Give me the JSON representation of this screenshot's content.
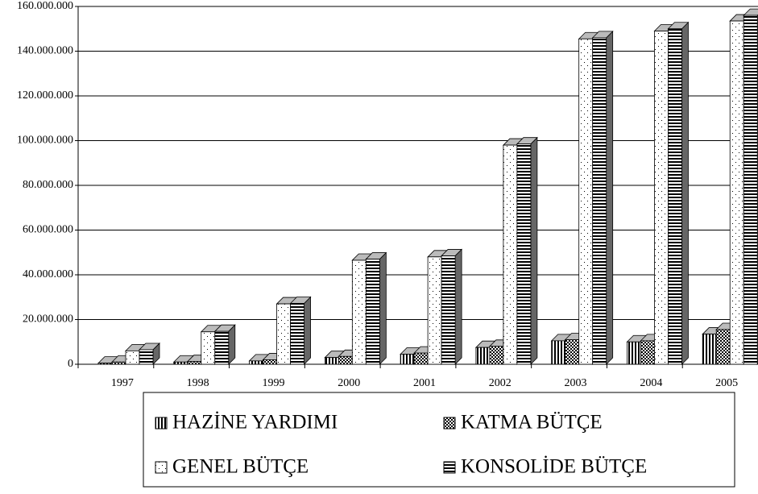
{
  "chart_data": {
    "type": "bar3d",
    "categories": [
      "1997",
      "1998",
      "1999",
      "2000",
      "2001",
      "2002",
      "2003",
      "2004",
      "2005"
    ],
    "series": [
      {
        "name": "HAZİNE YARDIMI",
        "values": [
          500000,
          1000000,
          1500000,
          3000000,
          4500000,
          7500000,
          10500000,
          10000000,
          13500000
        ]
      },
      {
        "name": "KATMA BÜTÇE",
        "values": [
          1000000,
          1200000,
          2000000,
          3500000,
          5000000,
          8000000,
          11000000,
          10500000,
          15500000
        ]
      },
      {
        "name": "GENEL BÜTÇE",
        "values": [
          6000000,
          14500000,
          27000000,
          46500000,
          48000000,
          98000000,
          145500000,
          149000000,
          153500000
        ]
      },
      {
        "name": "KONSOLİDE BÜTÇE",
        "values": [
          6500000,
          14700000,
          27200000,
          47000000,
          48500000,
          98500000,
          146000000,
          150000000,
          156000000
        ]
      }
    ],
    "ylim": [
      0,
      160000000
    ],
    "yticks": [
      0,
      {
        "value": 20000000,
        "label": "20.000.000"
      },
      {
        "value": 40000000,
        "label": "40.000.000"
      },
      {
        "value": 60000000,
        "label": "60.000.000"
      },
      {
        "value": 80000000,
        "label": "80.000.000"
      },
      {
        "value": 100000000,
        "label": "100.000.000"
      },
      {
        "value": 120000000,
        "label": "120.000.000"
      },
      {
        "value": 140000000,
        "label": "140.000.000"
      },
      {
        "value": 160000000,
        "label": "160.000.000"
      }
    ],
    "grid": true
  }
}
